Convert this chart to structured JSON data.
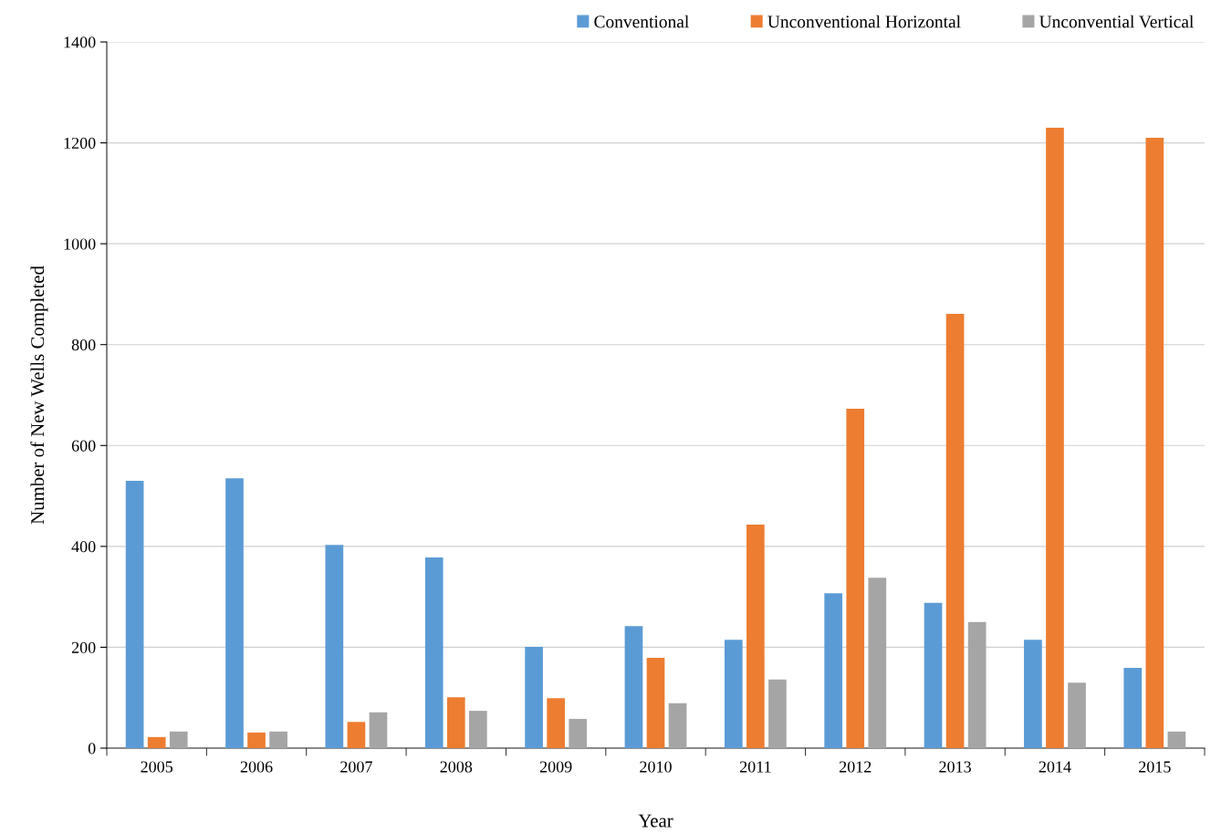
{
  "chart_data": {
    "type": "bar",
    "xlabel": "Year",
    "ylabel": "Number of New Wells Completed",
    "categories": [
      "2005",
      "2006",
      "2007",
      "2008",
      "2009",
      "2010",
      "2011",
      "2012",
      "2013",
      "2014",
      "2015"
    ],
    "series": [
      {
        "name": "Conventional",
        "color": "#5b9bd5",
        "values": [
          530,
          535,
          403,
          378,
          201,
          242,
          215,
          307,
          288,
          215,
          159
        ]
      },
      {
        "name": "Unconventional Horizontal",
        "color": "#ed7d31",
        "values": [
          22,
          31,
          52,
          101,
          99,
          179,
          443,
          673,
          861,
          1230,
          1210
        ]
      },
      {
        "name": "Unconvential Vertical",
        "color": "#a5a5a5",
        "values": [
          33,
          33,
          71,
          74,
          58,
          89,
          136,
          338,
          250,
          130,
          33
        ]
      }
    ],
    "ylim": [
      0,
      1400
    ],
    "yticks": [
      0,
      200,
      400,
      600,
      800,
      1000,
      1200,
      1400
    ],
    "grid": "y",
    "legend": "top right"
  }
}
